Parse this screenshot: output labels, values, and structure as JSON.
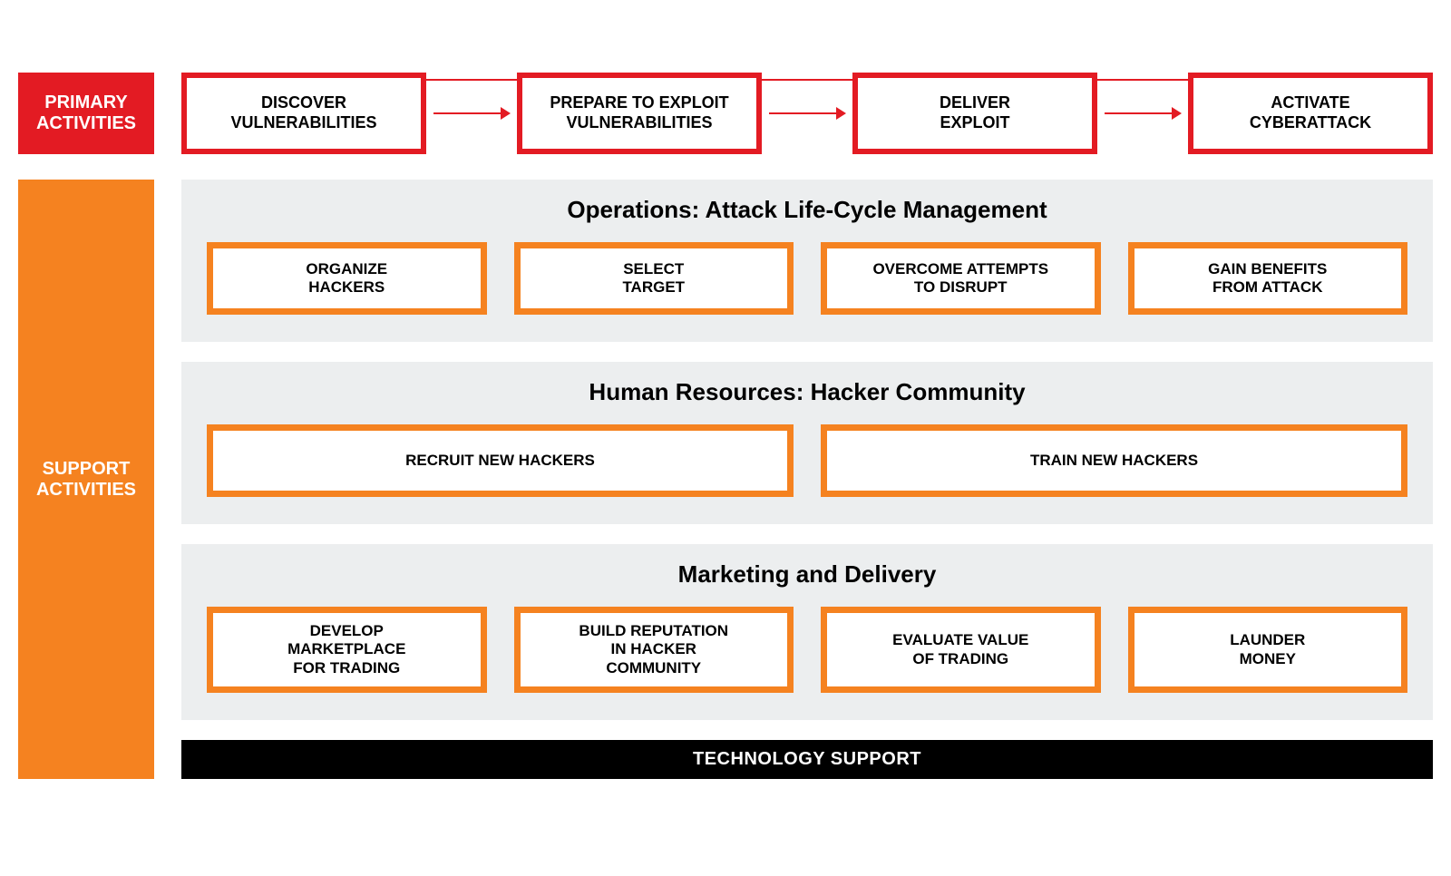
{
  "colors": {
    "primary_red": "#e31b23",
    "support_orange": "#f58220",
    "panel_bg": "#eceeef",
    "black": "#000000",
    "white": "#ffffff"
  },
  "style": {
    "primary_border_width": 6,
    "support_border_width": 7,
    "arrow_line_width": 2
  },
  "primary": {
    "label": "PRIMARY\nACTIVITIES",
    "boxes": [
      "DISCOVER\nVULNERABILITIES",
      "PREPARE TO EXPLOIT\nVULNERABILITIES",
      "DELIVER\nEXPLOIT",
      "ACTIVATE\nCYBERATTACK"
    ]
  },
  "support": {
    "label": "SUPPORT\nACTIVITIES",
    "panels": [
      {
        "title": "Operations: Attack Life-Cycle Management",
        "boxes": [
          "ORGANIZE\nHACKERS",
          "SELECT\nTARGET",
          "OVERCOME ATTEMPTS\nTO DISRUPT",
          "GAIN BENEFITS\nFROM ATTACK"
        ]
      },
      {
        "title": "Human Resources: Hacker Community",
        "boxes": [
          "RECRUIT NEW HACKERS",
          "TRAIN NEW HACKERS"
        ]
      },
      {
        "title": "Marketing and Delivery",
        "boxes": [
          "DEVELOP\nMARKETPLACE\nFOR TRADING",
          "BUILD REPUTATION\nIN HACKER\nCOMMUNITY",
          "EVALUATE VALUE\nOF TRADING",
          "LAUNDER\nMONEY"
        ]
      }
    ],
    "tech_bar": "TECHNOLOGY SUPPORT"
  }
}
